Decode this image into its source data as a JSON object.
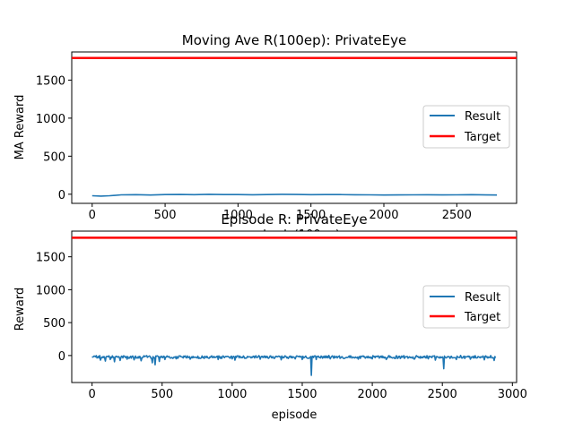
{
  "chart_data": [
    {
      "type": "line",
      "title": "Moving Ave R(100ep): PrivateEye",
      "xlabel": "episode(100ep)",
      "ylabel": "MA Reward",
      "xlim": [
        -140,
        2910
      ],
      "ylim": [
        -120,
        1870
      ],
      "xticks": [
        0,
        500,
        1000,
        1500,
        2000,
        2500
      ],
      "yticks": [
        0,
        500,
        1000,
        1500
      ],
      "legend": {
        "placement": "center-right",
        "entries": [
          "Result",
          "Target"
        ]
      },
      "series": [
        {
          "name": "Result",
          "color": "#1f77b4",
          "x": [
            0,
            60,
            120,
            200,
            300,
            400,
            500,
            600,
            700,
            800,
            900,
            1000,
            1100,
            1200,
            1300,
            1400,
            1500,
            1600,
            1700,
            1800,
            1900,
            2000,
            2100,
            2200,
            2300,
            2400,
            2500,
            2600,
            2700,
            2775
          ],
          "y": [
            -20,
            -25,
            -20,
            -8,
            -6,
            -10,
            -5,
            -3,
            -6,
            -2,
            -4,
            -5,
            -7,
            -4,
            -2,
            -3,
            -6,
            -4,
            -5,
            -7,
            -8,
            -10,
            -9,
            -8,
            -7,
            -9,
            -8,
            -6,
            -9,
            -10
          ]
        },
        {
          "name": "Target",
          "color": "#ff0000",
          "x": [
            -140,
            2910
          ],
          "y": [
            1790,
            1790
          ]
        }
      ]
    },
    {
      "type": "line",
      "title": "Episode R: PrivateEye",
      "xlabel": "episode",
      "ylabel": "Reward",
      "xlim": [
        -145,
        3030
      ],
      "ylim": [
        -410,
        1890
      ],
      "xticks": [
        0,
        500,
        1000,
        1500,
        2000,
        2500,
        3000
      ],
      "yticks": [
        0,
        500,
        1000,
        1500
      ],
      "legend": {
        "placement": "center-right",
        "entries": [
          "Result",
          "Target"
        ]
      },
      "series": [
        {
          "name": "Result",
          "color": "#1f77b4",
          "noise": {
            "x_start": 0,
            "x_end": 2880,
            "base": -5,
            "amplitude": 40
          },
          "spikes": [
            [
              60,
              -70
            ],
            [
              95,
              -85
            ],
            [
              130,
              -60
            ],
            [
              160,
              -95
            ],
            [
              200,
              -75
            ],
            [
              250,
              -55
            ],
            [
              300,
              -65
            ],
            [
              350,
              -80
            ],
            [
              430,
              -110
            ],
            [
              450,
              -140
            ],
            [
              480,
              -90
            ],
            [
              520,
              -60
            ],
            [
              600,
              -50
            ],
            [
              700,
              -55
            ],
            [
              800,
              -45
            ],
            [
              900,
              -60
            ],
            [
              1000,
              -50
            ],
            [
              1020,
              -70
            ],
            [
              1100,
              -40
            ],
            [
              1200,
              -55
            ],
            [
              1300,
              -45
            ],
            [
              1350,
              -65
            ],
            [
              1400,
              -45
            ],
            [
              1450,
              -50
            ],
            [
              1500,
              -60
            ],
            [
              1565,
              -300
            ],
            [
              1600,
              -60
            ],
            [
              1700,
              -50
            ],
            [
              1800,
              -45
            ],
            [
              1900,
              -55
            ],
            [
              2000,
              -50
            ],
            [
              2100,
              -60
            ],
            [
              2200,
              -45
            ],
            [
              2300,
              -55
            ],
            [
              2400,
              -50
            ],
            [
              2450,
              -70
            ],
            [
              2510,
              -200
            ],
            [
              2600,
              -60
            ],
            [
              2700,
              -55
            ],
            [
              2800,
              -65
            ],
            [
              2870,
              -75
            ]
          ]
        },
        {
          "name": "Target",
          "color": "#ff0000",
          "x": [
            -145,
            3030
          ],
          "y": [
            1790,
            1790
          ]
        }
      ]
    }
  ]
}
